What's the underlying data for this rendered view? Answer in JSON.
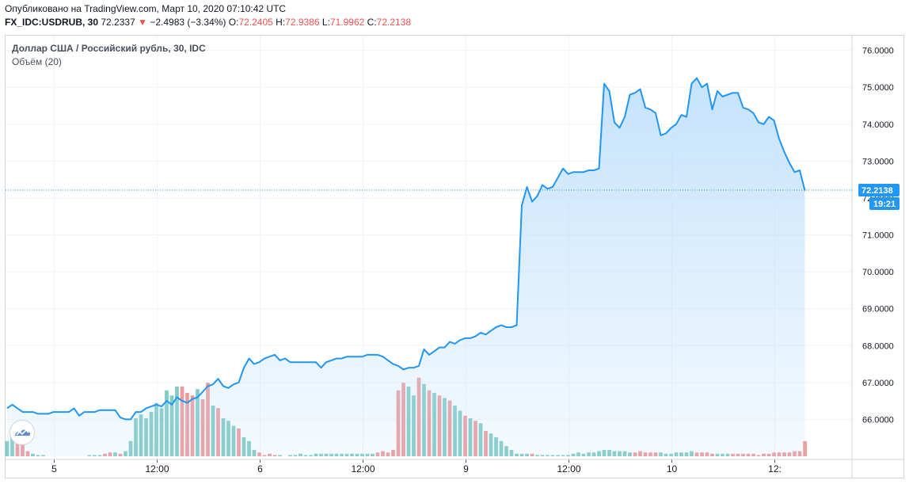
{
  "header": {
    "published": "Опубликовано на TradingView.com, Март 10, 2020 07:10:42 UTC",
    "symbol": "FX_IDC:USDRUB, 30",
    "last": "72.2337",
    "arrow": "▼",
    "change": "−2.4983 (−3.34%)",
    "o_label": "O:",
    "o_value": "72.2405",
    "h_label": "H:",
    "h_value": "72.9386",
    "l_label": "L:",
    "l_value": "71.9962",
    "c_label": "C:",
    "c_value": "72.2138"
  },
  "legend": {
    "title": "Доллар США / Российский рубль, 30, IDC",
    "volume": "Объём (20)"
  },
  "colors": {
    "line": "#2196f3",
    "fill": "#bbdefb",
    "up": "#80cbc4",
    "down": "#ef9a9a",
    "grid": "#f0f3fa",
    "label_bg": "#2196f3"
  },
  "chart_data": {
    "type": "area",
    "title": "Доллар США / Российский рубль, 30, IDC",
    "xlabel": "",
    "ylabel": "",
    "ylim": [
      65.0,
      76.4
    ],
    "y_ticks": [
      "76.0000",
      "75.0000",
      "74.0000",
      "73.0000",
      "72.0000",
      "71.0000",
      "70.0000",
      "69.0000",
      "68.0000",
      "67.0000",
      "66.0000"
    ],
    "x_tick_labels": [
      "5",
      "12:00",
      "6",
      "12:00",
      "9",
      "12:00",
      "10",
      "12:"
    ],
    "x_tick_index": [
      9,
      29,
      49,
      69,
      89,
      109,
      129,
      149
    ],
    "last_price_label": "72.2138",
    "countdown_label": "19:21",
    "price": [
      66.3,
      66.4,
      66.3,
      66.2,
      66.2,
      66.2,
      66.15,
      66.15,
      66.15,
      66.2,
      66.2,
      66.2,
      66.2,
      66.3,
      66.1,
      66.2,
      66.2,
      66.2,
      66.25,
      66.25,
      66.25,
      66.25,
      66.05,
      66.0,
      66.0,
      66.2,
      66.2,
      66.3,
      66.35,
      66.4,
      66.35,
      66.5,
      66.4,
      66.6,
      66.5,
      66.45,
      66.55,
      66.6,
      66.75,
      66.9,
      66.95,
      67.1,
      66.9,
      66.85,
      66.95,
      67.0,
      67.4,
      67.65,
      67.5,
      67.55,
      67.65,
      67.7,
      67.75,
      67.6,
      67.65,
      67.55,
      67.55,
      67.55,
      67.55,
      67.55,
      67.55,
      67.4,
      67.55,
      67.6,
      67.65,
      67.65,
      67.7,
      67.7,
      67.7,
      67.7,
      67.75,
      67.75,
      67.75,
      67.7,
      67.6,
      67.5,
      67.45,
      67.35,
      67.4,
      67.4,
      67.45,
      67.9,
      67.75,
      67.85,
      67.95,
      67.95,
      68.1,
      68.05,
      68.15,
      68.2,
      68.2,
      68.25,
      68.35,
      68.3,
      68.4,
      68.5,
      68.55,
      68.5,
      68.5,
      68.55,
      71.8,
      72.3,
      71.9,
      72.05,
      72.35,
      72.25,
      72.3,
      72.55,
      72.8,
      72.65,
      72.7,
      72.7,
      72.7,
      72.75,
      72.75,
      72.8,
      75.1,
      74.9,
      74.05,
      73.9,
      74.2,
      74.8,
      74.85,
      74.95,
      74.45,
      74.4,
      74.3,
      73.7,
      73.75,
      73.9,
      74.0,
      74.25,
      74.2,
      75.1,
      75.25,
      75.0,
      75.1,
      74.4,
      74.9,
      74.75,
      74.8,
      74.85,
      74.85,
      74.45,
      74.4,
      74.3,
      74.05,
      74.0,
      74.2,
      74.1,
      73.6,
      73.25,
      72.95,
      72.7,
      72.75,
      72.2
    ],
    "volume": [
      12,
      16,
      22,
      14,
      4,
      2,
      1,
      1,
      0,
      0,
      0,
      0,
      0,
      0,
      0,
      0,
      1,
      1,
      1,
      2,
      3,
      3,
      2,
      4,
      12,
      30,
      33,
      30,
      35,
      42,
      38,
      52,
      48,
      55,
      55,
      50,
      48,
      53,
      45,
      58,
      40,
      38,
      30,
      28,
      24,
      22,
      15,
      12,
      5,
      3,
      1,
      2,
      1,
      1,
      0,
      1,
      1,
      2,
      1,
      1,
      2,
      2,
      2,
      2,
      2,
      2,
      2,
      2,
      2,
      2,
      2,
      2,
      3,
      4,
      3,
      5,
      52,
      58,
      55,
      48,
      62,
      57,
      52,
      50,
      48,
      46,
      44,
      40,
      36,
      32,
      30,
      28,
      26,
      20,
      18,
      15,
      12,
      8,
      5,
      2,
      2,
      2,
      2,
      1,
      1,
      1,
      1,
      1,
      1,
      1,
      2,
      3,
      2,
      3,
      3,
      4,
      5,
      5,
      4,
      4,
      4,
      3,
      3,
      4,
      3,
      3,
      3,
      3,
      2,
      2,
      3,
      3,
      3,
      4,
      3,
      3,
      3,
      2,
      2,
      2,
      2,
      2,
      2,
      2,
      2,
      2,
      1,
      2,
      2,
      3,
      3,
      3,
      3,
      4,
      4,
      12
    ],
    "volume_direction": [
      "u",
      "u",
      "d",
      "d",
      "d",
      "u",
      "u",
      "u",
      "u",
      "u",
      "u",
      "u",
      "u",
      "u",
      "u",
      "u",
      "u",
      "u",
      "u",
      "d",
      "d",
      "u",
      "d",
      "u",
      "u",
      "u",
      "u",
      "u",
      "u",
      "u",
      "u",
      "u",
      "u",
      "u",
      "d",
      "d",
      "d",
      "u",
      "d",
      "d",
      "u",
      "d",
      "u",
      "u",
      "u",
      "d",
      "u",
      "u",
      "u",
      "d",
      "d",
      "d",
      "d",
      "u",
      "u",
      "u",
      "u",
      "u",
      "u",
      "u",
      "u",
      "u",
      "u",
      "u",
      "u",
      "u",
      "u",
      "u",
      "u",
      "u",
      "u",
      "u",
      "d",
      "d",
      "d",
      "d",
      "d",
      "d",
      "u",
      "u",
      "d",
      "u",
      "d",
      "u",
      "d",
      "u",
      "d",
      "u",
      "u",
      "d",
      "u",
      "d",
      "u",
      "d",
      "u",
      "u",
      "u",
      "u",
      "u",
      "u",
      "u",
      "u",
      "d",
      "u",
      "u",
      "u",
      "u",
      "u",
      "u",
      "u",
      "u",
      "u",
      "u",
      "u",
      "u",
      "u",
      "u",
      "u",
      "u",
      "u",
      "u",
      "u",
      "d",
      "d",
      "d",
      "d",
      "d",
      "u",
      "u",
      "u",
      "u",
      "u",
      "u",
      "u",
      "d",
      "d",
      "d",
      "d",
      "u",
      "u",
      "u",
      "d",
      "d",
      "d",
      "d",
      "d",
      "d",
      "d",
      "d",
      "d",
      "d",
      "d",
      "d",
      "d",
      "d",
      "d"
    ]
  }
}
